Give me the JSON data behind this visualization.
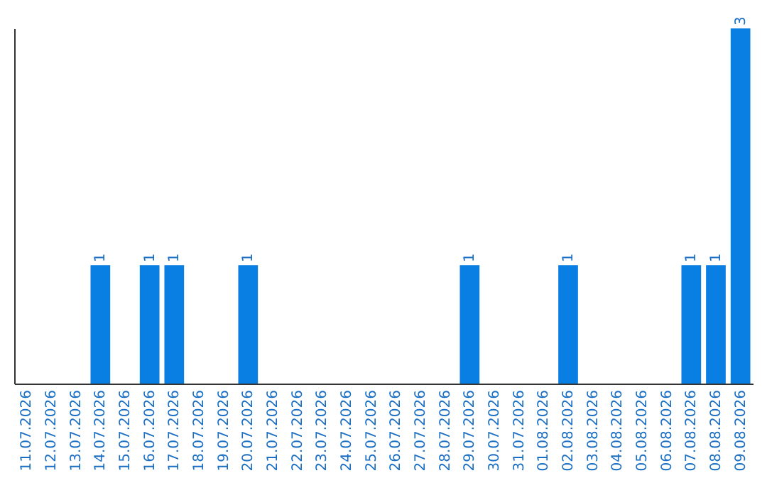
{
  "chart_data": {
    "type": "bar",
    "categories": [
      "11.07.2026",
      "12.07.2026",
      "13.07.2026",
      "14.07.2026",
      "15.07.2026",
      "16.07.2026",
      "17.07.2026",
      "18.07.2026",
      "19.07.2026",
      "20.07.2026",
      "21.07.2026",
      "22.07.2026",
      "23.07.2026",
      "24.07.2026",
      "25.07.2026",
      "26.07.2026",
      "27.07.2026",
      "28.07.2026",
      "29.07.2026",
      "30.07.2026",
      "31.07.2026",
      "01.08.2026",
      "02.08.2026",
      "03.08.2026",
      "04.08.2026",
      "05.08.2026",
      "06.08.2026",
      "07.08.2026",
      "08.08.2026",
      "09.08.2026"
    ],
    "values": [
      0,
      0,
      0,
      1,
      0,
      1,
      1,
      0,
      0,
      1,
      0,
      0,
      0,
      0,
      0,
      0,
      0,
      0,
      1,
      0,
      0,
      0,
      1,
      0,
      0,
      0,
      0,
      1,
      1,
      3
    ],
    "value_labels": [
      null,
      null,
      null,
      "1",
      null,
      "1",
      "1",
      null,
      null,
      "1",
      null,
      null,
      null,
      null,
      null,
      null,
      null,
      null,
      "1",
      null,
      null,
      null,
      "1",
      null,
      null,
      null,
      null,
      "1",
      "1",
      "3"
    ],
    "color": "#0a7fe3",
    "grid": false
  }
}
